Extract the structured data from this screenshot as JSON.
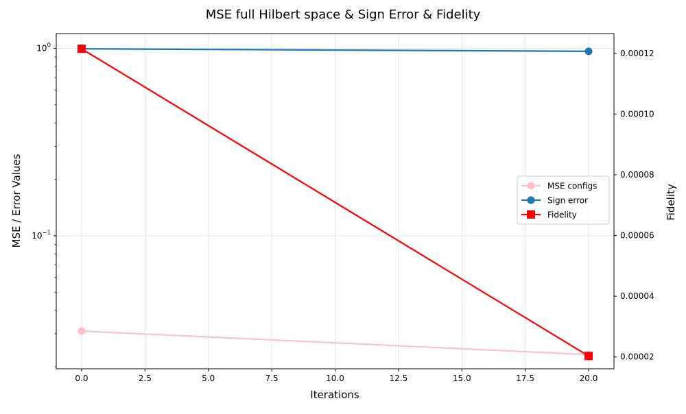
{
  "chart_data": {
    "type": "line",
    "title": "MSE full Hilbert space & Sign Error & Fidelity",
    "xlabel": "Iterations",
    "ylabel_left": "MSE / Error Values",
    "ylabel_right": "Fidelity",
    "x": [
      0,
      20
    ],
    "xlim": [
      -1,
      21
    ],
    "xticks": [
      0.0,
      2.5,
      5.0,
      7.5,
      10.0,
      12.5,
      15.0,
      17.5,
      20.0
    ],
    "xtick_labels": [
      "0.0",
      "2.5",
      "5.0",
      "7.5",
      "10.0",
      "12.5",
      "15.0",
      "17.5",
      "20.0"
    ],
    "left_axis": {
      "scale": "log",
      "ylim": [
        0.0195,
        1.2
      ],
      "major_ticks": [
        0.1,
        1
      ],
      "major_tick_labels": [
        {
          "base": "10",
          "exp": "−1"
        },
        {
          "base": "10",
          "exp": "0"
        }
      ],
      "minor_ticks": [
        0.02,
        0.03,
        0.04,
        0.05,
        0.06,
        0.07,
        0.08,
        0.09,
        0.2,
        0.3,
        0.4,
        0.5,
        0.6,
        0.7,
        0.8,
        0.9
      ]
    },
    "right_axis": {
      "scale": "linear",
      "ylim": [
        1.61e-05,
        0.0001265
      ],
      "ticks": [
        2e-05,
        4e-05,
        6e-05,
        8e-05,
        0.0001,
        0.00012
      ],
      "tick_labels": [
        "0.00002",
        "0.00004",
        "0.00006",
        "0.00008",
        "0.00010",
        "0.00012"
      ]
    },
    "series": [
      {
        "name": "MSE configs",
        "axis": "left",
        "values": [
          0.031,
          0.0232
        ],
        "color": "#ffc0cb",
        "marker": "circle"
      },
      {
        "name": "Sign error",
        "axis": "left",
        "values": [
          0.995,
          0.965
        ],
        "color": "#1f77b4",
        "marker": "circle"
      },
      {
        "name": "Fidelity",
        "axis": "right",
        "values": [
          0.0001215,
          2.03e-05
        ],
        "color": "#ff0000",
        "marker": "square"
      }
    ],
    "grid": true,
    "legend_position": "center-right"
  }
}
